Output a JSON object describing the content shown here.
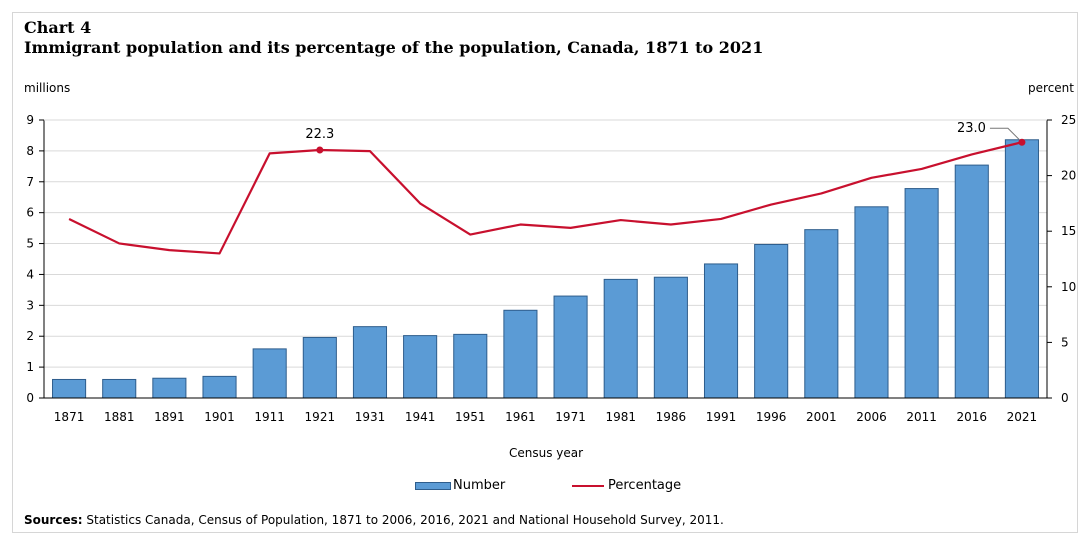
{
  "header": {
    "chart_label": "Chart 4",
    "title": "Immigrant population and its percentage of the population, Canada, 1871 to 2021"
  },
  "sources": {
    "label": "Sources:",
    "text": "Statistics Canada, Census of Population, 1871 to 2006, 2016, 2021 and National Household Survey, 2011."
  },
  "colors": {
    "bar_fill": "#5b9bd5",
    "bar_stroke": "#2e5d8c",
    "line": "#c8102e",
    "grid": "#d9d9d9"
  },
  "chart_data": {
    "type": "bar",
    "title": "Immigrant population and its percentage of the population, Canada, 1871 to 2021",
    "xlabel": "Census year",
    "ylabel": "millions",
    "y2label": "percent",
    "categories": [
      "1871",
      "1881",
      "1891",
      "1901",
      "1911",
      "1921",
      "1931",
      "1941",
      "1951",
      "1961",
      "1971",
      "1981",
      "1986",
      "1991",
      "1996",
      "2001",
      "2006",
      "2011",
      "2016",
      "2021"
    ],
    "ylim": [
      0,
      9
    ],
    "yticks": [
      0,
      1,
      2,
      3,
      4,
      5,
      6,
      7,
      8,
      9
    ],
    "y2lim": [
      0,
      25
    ],
    "y2ticks": [
      0,
      5,
      10,
      15,
      20,
      25
    ],
    "grid": true,
    "legend_position": "bottom",
    "series": [
      {
        "name": "Number",
        "type": "bar",
        "axis": "left",
        "values": [
          0.6,
          0.6,
          0.64,
          0.7,
          1.59,
          1.96,
          2.31,
          2.02,
          2.06,
          2.84,
          3.3,
          3.84,
          3.91,
          4.34,
          4.97,
          5.45,
          6.19,
          6.78,
          7.54,
          8.36
        ]
      },
      {
        "name": "Percentage",
        "type": "line",
        "axis": "right",
        "values": [
          16.1,
          13.9,
          13.3,
          13.0,
          22.0,
          22.3,
          22.2,
          17.5,
          14.7,
          15.6,
          15.3,
          16.0,
          15.6,
          16.1,
          17.4,
          18.4,
          19.8,
          20.6,
          21.9,
          23.0
        ]
      }
    ],
    "annotations": [
      {
        "category": "1921",
        "text": "22.3"
      },
      {
        "category": "2021",
        "text": "23.0"
      }
    ]
  }
}
